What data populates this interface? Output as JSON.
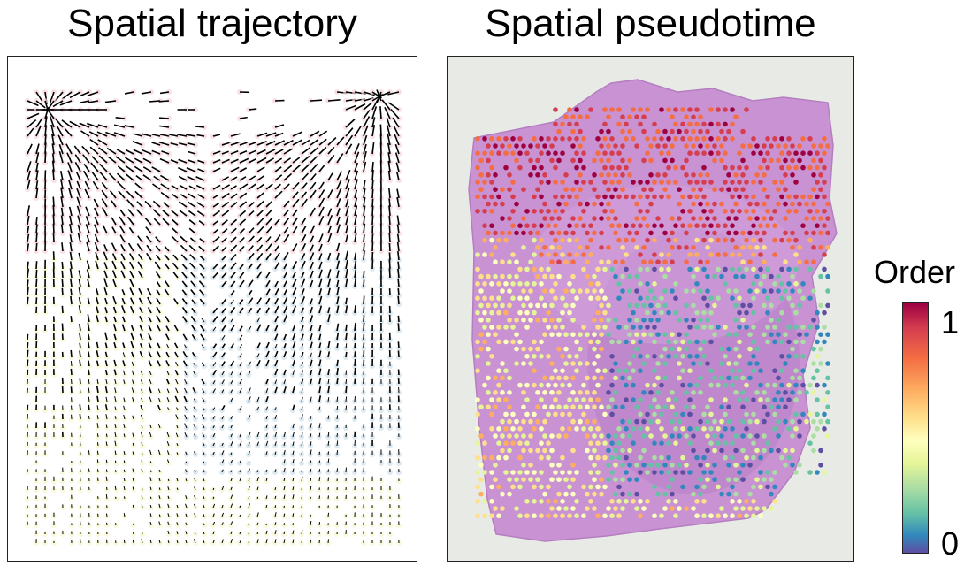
{
  "titles": {
    "left": "Spatial trajectory",
    "right": "Spatial pseudotime"
  },
  "colorbar": {
    "label": "Order",
    "max_label": "1",
    "min_label": "0",
    "colormap": [
      "#9e0142",
      "#d53e4f",
      "#f46d43",
      "#fdae61",
      "#fee08b",
      "#ffffbf",
      "#e6f598",
      "#abdda4",
      "#66c2a5",
      "#3288bd",
      "#5e4fa2"
    ]
  },
  "colors": {
    "spot_pink": "#f6d3d8",
    "spot_blue": "#cfdfe9",
    "spot_yellow": "#f7f7cf",
    "arrow": "#000000",
    "tissue": "#c98fd1",
    "background": "#e8ebe5"
  }
}
